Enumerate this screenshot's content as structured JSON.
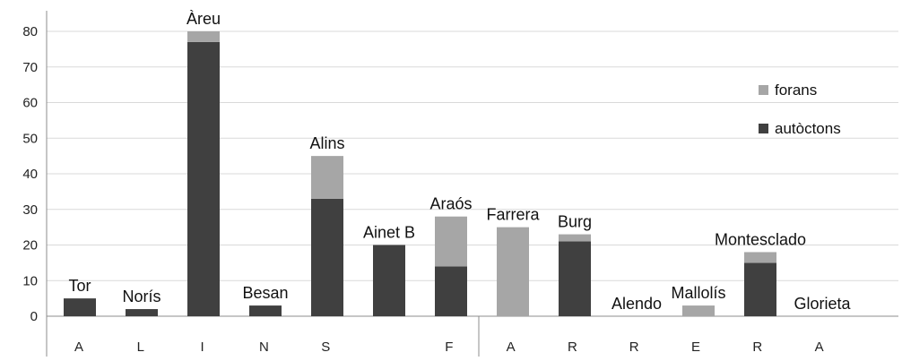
{
  "chart_data": {
    "type": "bar",
    "stacked": true,
    "title": "",
    "xlabel": "",
    "ylabel": "",
    "ylim": [
      0,
      80
    ],
    "yticks": [
      0,
      10,
      20,
      30,
      40,
      50,
      60,
      70,
      80
    ],
    "grid": true,
    "legend_position": "right",
    "categories": [
      "Tor",
      "Norís",
      "Àreu",
      "Besan",
      "Alins",
      "Ainet B",
      "Araós",
      "Farrera",
      "Burg",
      "Alendo",
      "Mallolís",
      "Montesclado",
      "Glorieta"
    ],
    "category_axis_letters": [
      "",
      "A",
      "L",
      "I",
      "N",
      "S",
      "",
      "F",
      "A",
      "R",
      "R",
      "E",
      "R",
      "A"
    ],
    "series": [
      {
        "name": "autòctons",
        "color": "#404040",
        "values": [
          5,
          2,
          77,
          3,
          33,
          20,
          14,
          0,
          21,
          0,
          0,
          15,
          0
        ]
      },
      {
        "name": "forans",
        "color": "#a6a6a6",
        "values": [
          0,
          0,
          3,
          0,
          12,
          0,
          14,
          25,
          2,
          0,
          3,
          3,
          0
        ]
      }
    ],
    "legend": [
      "forans",
      "autòctons"
    ]
  }
}
